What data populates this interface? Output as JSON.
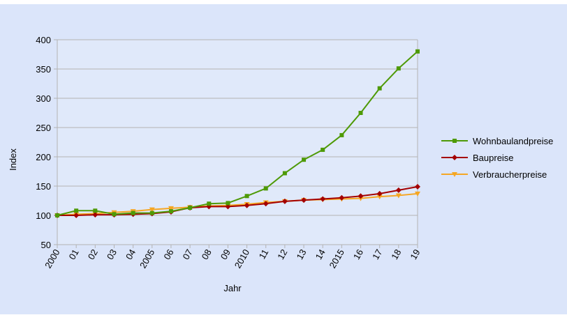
{
  "chart_data": {
    "type": "line",
    "title": "",
    "xlabel": "Jahr",
    "ylabel": "Index",
    "ylim": [
      50,
      400
    ],
    "yticks": [
      50,
      100,
      150,
      200,
      250,
      300,
      350,
      400
    ],
    "grid": "horizontal",
    "legend_position": "right",
    "categories": [
      "2000",
      "01",
      "02",
      "03",
      "04",
      "2005",
      "06",
      "07",
      "08",
      "09",
      "2010",
      "11",
      "12",
      "13",
      "14",
      "2015",
      "16",
      "17",
      "18",
      "19"
    ],
    "series": [
      {
        "name": "Wohnbaulandpreise",
        "color": "#4e9a06",
        "marker": "square",
        "values": [
          100,
          108,
          108,
          102,
          104,
          104,
          107,
          113,
          120,
          121,
          133,
          146,
          172,
          195,
          212,
          237,
          275,
          317,
          351,
          380
        ]
      },
      {
        "name": "Baupreise",
        "color": "#a40000",
        "marker": "diamond",
        "values": [
          100,
          100,
          101,
          101,
          102,
          103,
          106,
          113,
          115,
          115,
          117,
          120,
          124,
          126,
          128,
          130,
          133,
          137,
          143,
          149
        ]
      },
      {
        "name": "Verbraucherpreise",
        "color": "#f5a623",
        "marker": "triangle-down",
        "values": [
          100,
          102,
          103,
          105,
          107,
          110,
          112,
          114,
          116,
          117,
          119,
          122,
          124,
          126,
          127,
          128,
          129,
          132,
          134,
          137
        ]
      }
    ]
  }
}
